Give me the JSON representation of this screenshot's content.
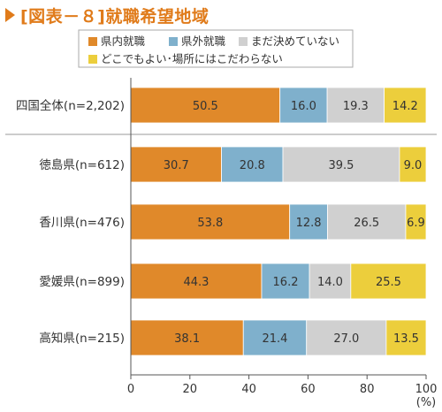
{
  "title": "[図表－８]就職希望地域",
  "colors": {
    "accent": "#e07b1a",
    "legend_border": "#aaaaaa",
    "axis": "#555555",
    "separator": "#bbbbbb"
  },
  "chart_data": {
    "type": "bar",
    "orientation": "horizontal",
    "stacked": true,
    "title": "[図表－８]就職希望地域",
    "xlabel": "",
    "xunit": "(%)",
    "ylabel": "",
    "xlim": [
      0,
      100
    ],
    "xticks": [
      0,
      20,
      40,
      60,
      80,
      100
    ],
    "grid": false,
    "legend_position": "top",
    "categories": [
      "四国全体(n=2,202)",
      "徳島県(n=612)",
      "香川県(n=476)",
      "愛媛県(n=899)",
      "高知県(n=215)"
    ],
    "series": [
      {
        "name": "県内就職",
        "color": "#e0892a",
        "values": [
          50.5,
          30.7,
          53.8,
          44.3,
          38.1
        ]
      },
      {
        "name": "県外就職",
        "color": "#7fb0cc",
        "values": [
          16.0,
          20.8,
          12.8,
          16.2,
          21.4
        ]
      },
      {
        "name": "まだ決めていない",
        "color": "#d0d0d0",
        "values": [
          19.3,
          39.5,
          26.5,
          14.0,
          27.0
        ]
      },
      {
        "name": "どこでもよい･場所にはこだわらない",
        "color": "#ecce3c",
        "values": [
          14.2,
          9.0,
          6.9,
          25.5,
          13.5
        ]
      }
    ],
    "value_labels": [
      [
        "50.5",
        "30.7",
        "53.8",
        "44.3",
        "38.1"
      ],
      [
        "16.0",
        "20.8",
        "12.8",
        "16.2",
        "21.4"
      ],
      [
        "19.3",
        "39.5",
        "26.5",
        "14.0",
        "27.0"
      ],
      [
        "14.2",
        "9.0",
        "6.9",
        "25.5",
        "13.5"
      ]
    ]
  }
}
